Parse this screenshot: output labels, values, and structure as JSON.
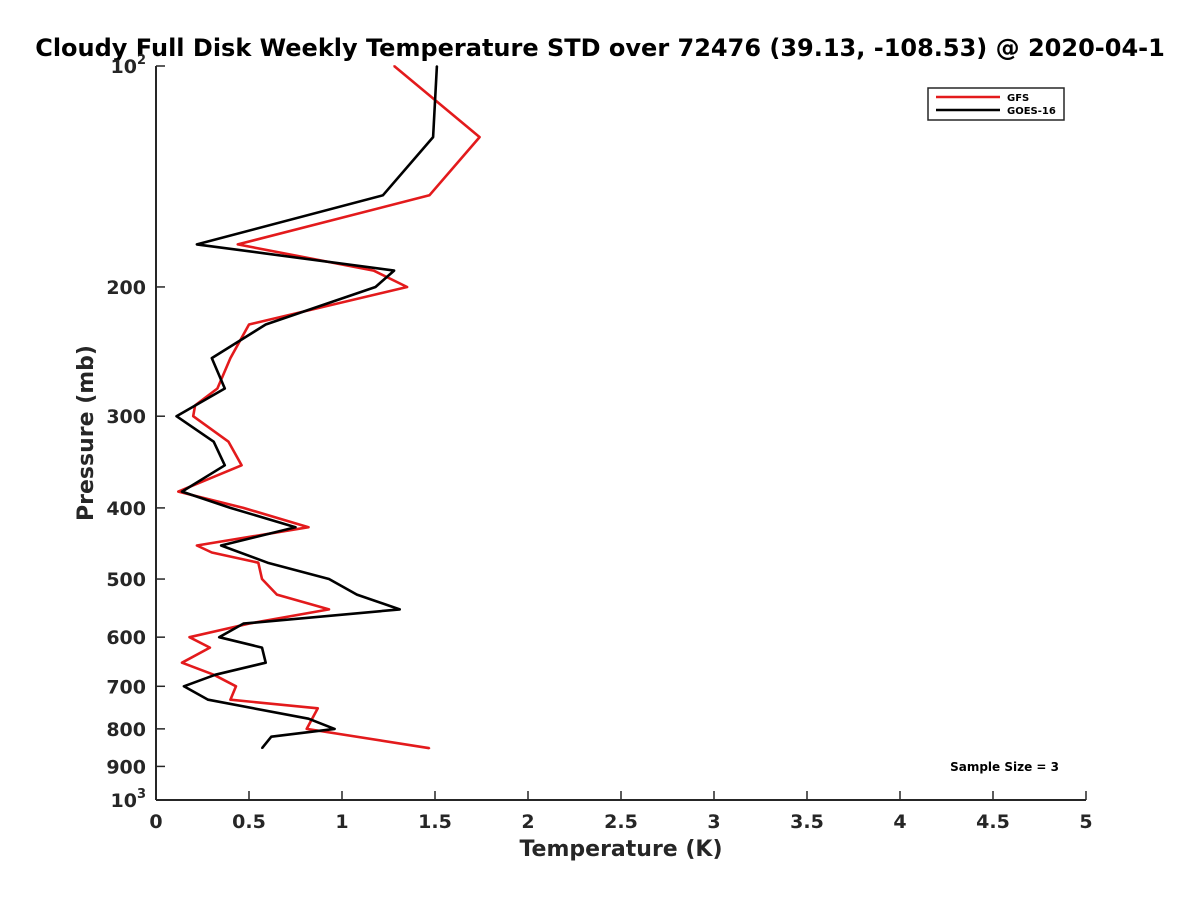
{
  "chart_data": {
    "type": "line",
    "title": "Cloudy Full Disk Weekly Temperature STD over 72476 (39.13, -108.53) @ 2020-04-1",
    "xlabel": "Temperature (K)",
    "ylabel": "Pressure (mb)",
    "xlim": [
      0,
      5
    ],
    "ylim": [
      100,
      1000
    ],
    "y_scale": "log",
    "y_reversed": true,
    "xticks": [
      0,
      0.5,
      1,
      1.5,
      2,
      2.5,
      3,
      3.5,
      4,
      4.5,
      5
    ],
    "xtick_labels": [
      "0",
      "0.5",
      "1",
      "1.5",
      "2",
      "2.5",
      "3",
      "3.5",
      "4",
      "4.5",
      "5"
    ],
    "yticks": [
      100,
      200,
      300,
      400,
      500,
      600,
      700,
      800,
      900,
      1000
    ],
    "ytick_labels": [
      {
        "base": "10",
        "exp": "2"
      },
      {
        "base": "200",
        "exp": ""
      },
      {
        "base": "300",
        "exp": ""
      },
      {
        "base": "400",
        "exp": ""
      },
      {
        "base": "500",
        "exp": ""
      },
      {
        "base": "600",
        "exp": ""
      },
      {
        "base": "700",
        "exp": ""
      },
      {
        "base": "800",
        "exp": ""
      },
      {
        "base": "900",
        "exp": ""
      },
      {
        "base": "10",
        "exp": "3"
      }
    ],
    "grid": false,
    "legend_position": "top-right",
    "series": [
      {
        "name": "GFS",
        "color": "#e31a1c",
        "points": [
          {
            "x": 1.28,
            "y": 100
          },
          {
            "x": 1.74,
            "y": 125
          },
          {
            "x": 1.47,
            "y": 150
          },
          {
            "x": 0.44,
            "y": 175
          },
          {
            "x": 1.17,
            "y": 190
          },
          {
            "x": 1.35,
            "y": 200
          },
          {
            "x": 0.5,
            "y": 225
          },
          {
            "x": 0.4,
            "y": 250
          },
          {
            "x": 0.33,
            "y": 275
          },
          {
            "x": 0.21,
            "y": 290
          },
          {
            "x": 0.2,
            "y": 300
          },
          {
            "x": 0.39,
            "y": 325
          },
          {
            "x": 0.46,
            "y": 350
          },
          {
            "x": 0.12,
            "y": 380
          },
          {
            "x": 0.47,
            "y": 400
          },
          {
            "x": 0.82,
            "y": 425
          },
          {
            "x": 0.22,
            "y": 450
          },
          {
            "x": 0.3,
            "y": 460
          },
          {
            "x": 0.55,
            "y": 475
          },
          {
            "x": 0.57,
            "y": 500
          },
          {
            "x": 0.65,
            "y": 525
          },
          {
            "x": 0.93,
            "y": 550
          },
          {
            "x": 0.5,
            "y": 575
          },
          {
            "x": 0.18,
            "y": 600
          },
          {
            "x": 0.29,
            "y": 620
          },
          {
            "x": 0.14,
            "y": 650
          },
          {
            "x": 0.31,
            "y": 675
          },
          {
            "x": 0.43,
            "y": 700
          },
          {
            "x": 0.4,
            "y": 730
          },
          {
            "x": 0.87,
            "y": 750
          },
          {
            "x": 0.81,
            "y": 800
          },
          {
            "x": 1.47,
            "y": 850
          }
        ]
      },
      {
        "name": "GOES-16",
        "color": "#000000",
        "points": [
          {
            "x": 1.51,
            "y": 100
          },
          {
            "x": 1.49,
            "y": 125
          },
          {
            "x": 1.22,
            "y": 150
          },
          {
            "x": 0.22,
            "y": 175
          },
          {
            "x": 1.28,
            "y": 190
          },
          {
            "x": 1.18,
            "y": 200
          },
          {
            "x": 0.59,
            "y": 225
          },
          {
            "x": 0.3,
            "y": 250
          },
          {
            "x": 0.37,
            "y": 275
          },
          {
            "x": 0.11,
            "y": 300
          },
          {
            "x": 0.31,
            "y": 325
          },
          {
            "x": 0.37,
            "y": 350
          },
          {
            "x": 0.14,
            "y": 380
          },
          {
            "x": 0.4,
            "y": 400
          },
          {
            "x": 0.75,
            "y": 425
          },
          {
            "x": 0.35,
            "y": 450
          },
          {
            "x": 0.6,
            "y": 475
          },
          {
            "x": 0.93,
            "y": 500
          },
          {
            "x": 1.08,
            "y": 525
          },
          {
            "x": 1.31,
            "y": 550
          },
          {
            "x": 0.47,
            "y": 575
          },
          {
            "x": 0.34,
            "y": 600
          },
          {
            "x": 0.57,
            "y": 620
          },
          {
            "x": 0.59,
            "y": 650
          },
          {
            "x": 0.32,
            "y": 675
          },
          {
            "x": 0.15,
            "y": 700
          },
          {
            "x": 0.28,
            "y": 730
          },
          {
            "x": 0.82,
            "y": 775
          },
          {
            "x": 0.96,
            "y": 800
          },
          {
            "x": 0.62,
            "y": 820
          },
          {
            "x": 0.57,
            "y": 850
          }
        ]
      }
    ],
    "annotation": "Sample Size = 3"
  }
}
